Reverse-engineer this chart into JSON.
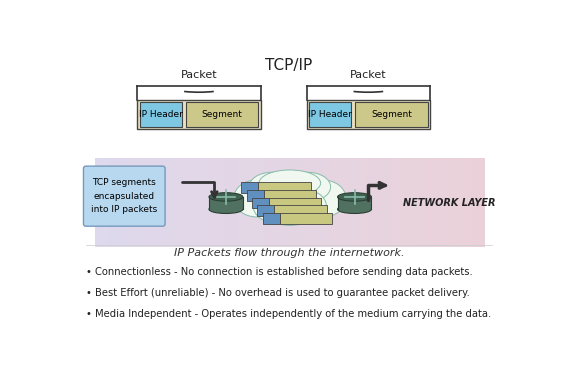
{
  "title": "TCP/IP",
  "title_fontsize": 11,
  "background_color": "#ffffff",
  "diagram_bg_color": "#ddd8e8",
  "packet_label": "Packet",
  "ip_header_color": "#7ec8e3",
  "segment_color": "#ccc88a",
  "packet_outer_color": "#e8e0c0",
  "note_box_color": "#b8d8f0",
  "note_text": "TCP segments\nencapsulated\ninto IP packets",
  "flow_text": "IP Packets flow through the internetwork.",
  "bullet1": "• Connectionless - No connection is established before sending data packets.",
  "bullet2": "• Best Effort (unreliable) - No overhead is used to guarantee packet delivery.",
  "bullet3": "• Media Independent - Operates independently of the medium carrying the data.",
  "network_layer_text": "NETWORK LAYER",
  "cloud_color": "#f0f8f0",
  "cloud_edge_color": "#88bbaa",
  "mini_packet_blue": "#6090c0",
  "mini_packet_tan": "#c8c880",
  "router_body_color": "#507060",
  "router_top_color": "#406050"
}
